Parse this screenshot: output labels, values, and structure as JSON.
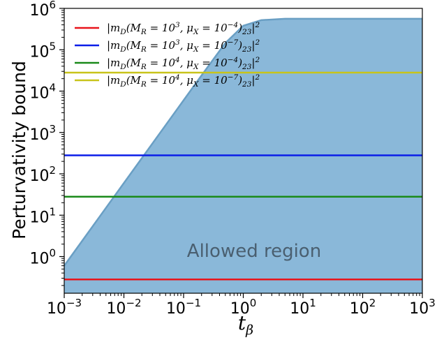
{
  "chart_data": {
    "type": "area",
    "xlabel": "t_β",
    "ylabel": "Perturvativity bound",
    "xscale": "log",
    "yscale": "log",
    "xlim": [
      0.001,
      1000
    ],
    "ylim": [
      0.13,
      1000000
    ],
    "x_ticks": [
      {
        "value": 0.001,
        "base": "10",
        "exp": "−3"
      },
      {
        "value": 0.01,
        "base": "10",
        "exp": "−2"
      },
      {
        "value": 0.1,
        "base": "10",
        "exp": "−1"
      },
      {
        "value": 1,
        "base": "10",
        "exp": "0"
      },
      {
        "value": 10,
        "base": "10",
        "exp": "1"
      },
      {
        "value": 100,
        "base": "10",
        "exp": "2"
      },
      {
        "value": 1000,
        "base": "10",
        "exp": "3"
      }
    ],
    "y_ticks": [
      {
        "value": 1,
        "base": "10",
        "exp": "0"
      },
      {
        "value": 10,
        "base": "10",
        "exp": "1"
      },
      {
        "value": 100,
        "base": "10",
        "exp": "2"
      },
      {
        "value": 1000,
        "base": "10",
        "exp": "3"
      },
      {
        "value": 10000,
        "base": "10",
        "exp": "4"
      },
      {
        "value": 100000,
        "base": "10",
        "exp": "5"
      },
      {
        "value": 1000000,
        "base": "10",
        "exp": "6"
      }
    ],
    "grid": false,
    "legend_position": "top-left",
    "area": {
      "color": "#8ab8d9",
      "edge_color": "#6a9fc4",
      "x": [
        0.001,
        0.002,
        0.005,
        0.01,
        0.02,
        0.05,
        0.1,
        0.2,
        0.5,
        1,
        2,
        5,
        10,
        100,
        1000
      ],
      "y": [
        0.6,
        2.4,
        15,
        60,
        240,
        1500,
        6000,
        24000,
        145000,
        380000,
        520000,
        560000,
        560000,
        560000,
        560000
      ]
    },
    "annotation": "Allowed region",
    "series": [
      {
        "legend": "|m_D(M_R = 10^3, μ_X = 10^−4)_23|^2",
        "color": "#e8141b",
        "value": 0.28,
        "parts": {
          "p1": "|m",
          "sub1": "D",
          "p2": "(M",
          "sub2": "R",
          "p3": " = 10",
          "sup1": "3",
          "p4": ", μ",
          "sub3": "X",
          "p5": " = 10",
          "sup2": "−4",
          "p6": ")",
          "sub4": "23",
          "p7": "|",
          "sup3": "2"
        }
      },
      {
        "legend": "|m_D(M_R = 10^3, μ_X = 10^−7)_23|^2",
        "color": "#0b1ee8",
        "value": 280,
        "parts": {
          "p1": "|m",
          "sub1": "D",
          "p2": "(M",
          "sub2": "R",
          "p3": " = 10",
          "sup1": "3",
          "p4": ", μ",
          "sub3": "X",
          "p5": " = 10",
          "sup2": "−7",
          "p6": ")",
          "sub4": "23",
          "p7": "|",
          "sup3": "2"
        }
      },
      {
        "legend": "|m_D(M_R = 10^4, μ_X = 10^−4)_23|^2",
        "color": "#1a8a1a",
        "value": 28,
        "parts": {
          "p1": "|m",
          "sub1": "D",
          "p2": "(M",
          "sub2": "R",
          "p3": " = 10",
          "sup1": "4",
          "p4": ", μ",
          "sub3": "X",
          "p5": " = 10",
          "sup2": "−4",
          "p6": ")",
          "sub4": "23",
          "p7": "|",
          "sup3": "2"
        }
      },
      {
        "legend": "|m_D(M_R = 10^4, μ_X = 10^−7)_23|^2",
        "color": "#c8c41a",
        "value": 28000,
        "parts": {
          "p1": "|m",
          "sub1": "D",
          "p2": "(M",
          "sub2": "R",
          "p3": " = 10",
          "sup1": "4",
          "p4": ", μ",
          "sub3": "X",
          "p5": " = 10",
          "sup2": "−7",
          "p6": ")",
          "sub4": "23",
          "p7": "|",
          "sup3": "2"
        }
      }
    ]
  }
}
